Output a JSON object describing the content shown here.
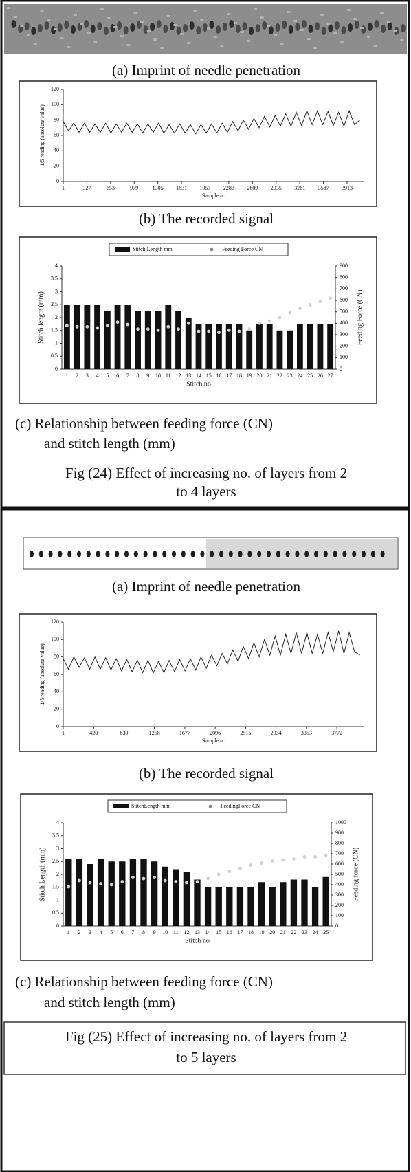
{
  "figures": [
    {
      "imprint_caption": "(a)    Imprint of needle penetration",
      "signal": {
        "type": "line",
        "color": "#222222",
        "x_label": "Sample no",
        "y_label": "1/5 reading (absolute value)",
        "x": [
          1,
          74,
          147,
          220,
          293,
          366,
          439,
          512,
          585,
          658,
          731,
          804,
          877,
          950,
          1023,
          1096,
          1169,
          1242,
          1315,
          1388,
          1461,
          1534,
          1607,
          1680,
          1753,
          1826,
          1899,
          1972,
          2045,
          2118,
          2191,
          2264,
          2337,
          2410,
          2483,
          2556,
          2629,
          2702,
          2775,
          2848,
          2921,
          2994,
          3067,
          3140,
          3213,
          3286,
          3359,
          3432,
          3505,
          3578,
          3651,
          3724,
          3797,
          3870,
          3943,
          4016,
          4089
        ],
        "y": [
          78,
          66,
          76,
          64,
          76,
          64,
          75,
          64,
          76,
          63,
          75,
          64,
          76,
          64,
          75,
          63,
          75,
          64,
          76,
          63,
          74,
          63,
          75,
          63,
          74,
          62,
          74,
          63,
          75,
          63,
          76,
          64,
          78,
          66,
          80,
          68,
          82,
          70,
          85,
          71,
          86,
          72,
          88,
          72,
          90,
          73,
          92,
          74,
          92,
          74,
          91,
          73,
          90,
          72,
          92,
          74,
          80
        ],
        "xlim": [
          1,
          4150
        ],
        "xticks": [
          1,
          327,
          653,
          979,
          1305,
          1631,
          1957,
          2283,
          2609,
          2935,
          3261,
          3587,
          3913
        ],
        "ylim": [
          0,
          120
        ],
        "yticks": [
          0,
          20,
          40,
          60,
          80,
          100,
          120
        ]
      },
      "signal_caption": "(b)    The recorded signal",
      "relation": {
        "type": "bar",
        "x_label": "Stitch no",
        "y_label": "Stitch length (mm)",
        "y2_label": "Feeding Force (CN)",
        "categories": [
          "1",
          "2",
          "3",
          "4",
          "5",
          "6",
          "7",
          "8",
          "9",
          "10",
          "11",
          "12",
          "13",
          "14",
          "15",
          "16",
          "17",
          "18",
          "19",
          "20",
          "21",
          "22",
          "23",
          "24",
          "25",
          "26",
          "27"
        ],
        "series": [
          {
            "name": "Stitch Length mm",
            "type": "bar",
            "color": "#111111",
            "values": [
              2.5,
              2.5,
              2.5,
              2.5,
              2.25,
              2.5,
              2.5,
              2.25,
              2.25,
              2.25,
              2.5,
              2.25,
              2,
              1.75,
              1.75,
              1.75,
              1.75,
              1.75,
              1.5,
              1.75,
              1.75,
              1.5,
              1.5,
              1.75,
              1.75,
              1.75,
              1.75
            ]
          },
          {
            "name": "Feeding Force CN",
            "type": "scatter",
            "axis": "y2",
            "color": "#d0d0d0",
            "values": [
              380,
              370,
              370,
              360,
              380,
              410,
              390,
              350,
              350,
              340,
              370,
              350,
              400,
              330,
              330,
              320,
              340,
              330,
              350,
              400,
              420,
              450,
              490,
              530,
              560,
              590,
              620
            ]
          }
        ],
        "ylim": [
          0,
          4
        ],
        "yticks": [
          0,
          0.5,
          1,
          1.5,
          2,
          2.5,
          3,
          3.5,
          4
        ],
        "y2lim": [
          0,
          900
        ],
        "y2ticks": [
          0,
          100,
          200,
          300,
          400,
          500,
          600,
          700,
          800,
          900
        ]
      },
      "relation_caption": [
        "(c)    Relationship between feeding force (CN)",
        "and stitch length (mm)"
      ],
      "caption": [
        "Fig (24) Effect of increasing no. of layers from 2",
        "to 4 layers"
      ]
    },
    {
      "imprint_caption": "(a)    Imprint of needle penetration",
      "signal": {
        "type": "line",
        "color": "#222222",
        "x_label": "Sample no",
        "y_label": "1/5 reading (absolute value)",
        "x": [
          1,
          74,
          147,
          220,
          293,
          366,
          439,
          512,
          585,
          658,
          731,
          804,
          877,
          950,
          1023,
          1096,
          1169,
          1242,
          1315,
          1388,
          1461,
          1534,
          1607,
          1680,
          1753,
          1826,
          1899,
          1972,
          2045,
          2118,
          2191,
          2264,
          2337,
          2410,
          2483,
          2556,
          2629,
          2702,
          2775,
          2848,
          2921,
          2994,
          3067,
          3140,
          3213,
          3286,
          3359,
          3432,
          3505,
          3578,
          3651,
          3724,
          3797,
          3870,
          3943,
          4016,
          4089
        ],
        "y": [
          78,
          66,
          80,
          68,
          79,
          66,
          80,
          66,
          79,
          65,
          78,
          64,
          77,
          63,
          76,
          62,
          76,
          62,
          75,
          62,
          76,
          63,
          77,
          64,
          78,
          65,
          80,
          67,
          82,
          70,
          84,
          72,
          88,
          75,
          92,
          78,
          96,
          80,
          100,
          82,
          104,
          82,
          106,
          84,
          108,
          84,
          108,
          84,
          106,
          84,
          108,
          86,
          110,
          84,
          108,
          86,
          82
        ],
        "xlim": [
          1,
          4150
        ],
        "xticks": [
          1,
          420,
          839,
          1258,
          1677,
          2096,
          2515,
          2934,
          3353,
          3772
        ],
        "ylim": [
          0,
          120
        ],
        "yticks": [
          0,
          20,
          40,
          60,
          80,
          100,
          120
        ]
      },
      "signal_caption": "(b)    The recorded signal",
      "relation": {
        "type": "bar",
        "x_label": "Stitch no",
        "y_label": "Stitch Length (mm)",
        "y2_label": "Feeding force (CN)",
        "categories": [
          "1",
          "2",
          "3",
          "4",
          "5",
          "6",
          "7",
          "8",
          "9",
          "10",
          "11",
          "12",
          "13",
          "14",
          "15",
          "16",
          "17",
          "18",
          "19",
          "20",
          "21",
          "22",
          "23",
          "24",
          "25"
        ],
        "series": [
          {
            "name": "StitchLength mm",
            "type": "bar",
            "color": "#111111",
            "values": [
              2.6,
              2.6,
              2.4,
              2.6,
              2.5,
              2.5,
              2.6,
              2.6,
              2.5,
              2.3,
              2.2,
              2.1,
              1.8,
              1.5,
              1.5,
              1.5,
              1.5,
              1.5,
              1.7,
              1.5,
              1.7,
              1.8,
              1.8,
              1.5,
              1.9
            ]
          },
          {
            "name": "FeedingForce CN",
            "type": "scatter",
            "axis": "y2",
            "color": "#d0d0d0",
            "values": [
              380,
              440,
              420,
              410,
              400,
              430,
              470,
              460,
              470,
              440,
              430,
              420,
              430,
              460,
              500,
              530,
              560,
              590,
              610,
              630,
              640,
              650,
              670,
              670,
              680
            ]
          }
        ],
        "ylim": [
          0,
          4
        ],
        "yticks": [
          0,
          0.5,
          1,
          1.5,
          2,
          2.5,
          3,
          3.5,
          4
        ],
        "y2lim": [
          0,
          1000
        ],
        "y2ticks": [
          0,
          100,
          200,
          300,
          400,
          500,
          600,
          700,
          800,
          900,
          1000
        ]
      },
      "relation_caption": [
        "(c)    Relationship between feeding force (CN)",
        "and stitch length (mm)"
      ],
      "caption": [
        "Fig (25) Effect of increasing no. of layers from 2",
        "to 5 layers"
      ]
    }
  ]
}
